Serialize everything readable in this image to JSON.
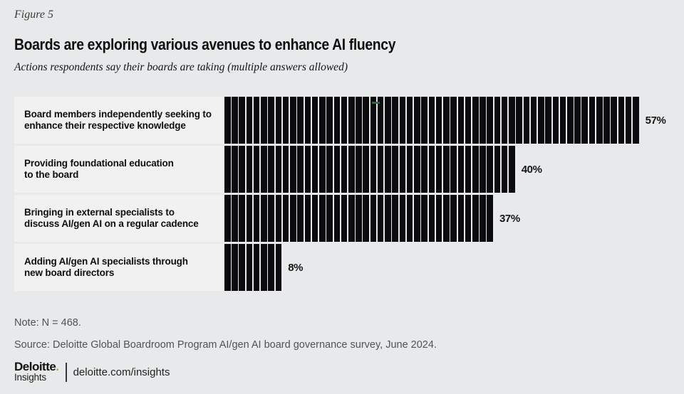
{
  "header": {
    "figure_label": "Figure 5",
    "title": "Boards are exploring various avenues to enhance AI fluency",
    "subtitle": "Actions respondents say their boards are taking (multiple answers allowed)"
  },
  "chart_data": {
    "type": "bar",
    "orientation": "horizontal",
    "unit": "%",
    "categories": [
      "Board members independently seeking to\nenhance their respective knowledge",
      "Providing foundational education\nto the board",
      "Bringing in external specialists to\ndiscuss AI/gen AI on a regular cadence",
      "Adding AI/gen AI specialists through\nnew board directors"
    ],
    "values": [
      57,
      40,
      37,
      8
    ],
    "value_labels": [
      "57%",
      "40%",
      "37%",
      "8%"
    ],
    "xlim": [
      0,
      61
    ],
    "grid": false,
    "legend": "none",
    "segments_represent": "one segment per percentage point",
    "bar_color": "#0b0b0d",
    "row_label_bg": "#f1f1f2"
  },
  "note": "Note: N = 468.",
  "source": "Source: Deloitte Global Boardroom Program AI/gen AI board governance survey, June 2024.",
  "footer": {
    "brand": "Deloitte",
    "brand_dot": ".",
    "brand_sub": "Insights",
    "link": "deloitte.com/insights"
  },
  "colors": {
    "background": "#e8e9ea",
    "row_label_bg": "#f1f1f2",
    "bar": "#0b0b0d",
    "accent_green": "#86bc25",
    "muted_text": "#4f5257"
  }
}
